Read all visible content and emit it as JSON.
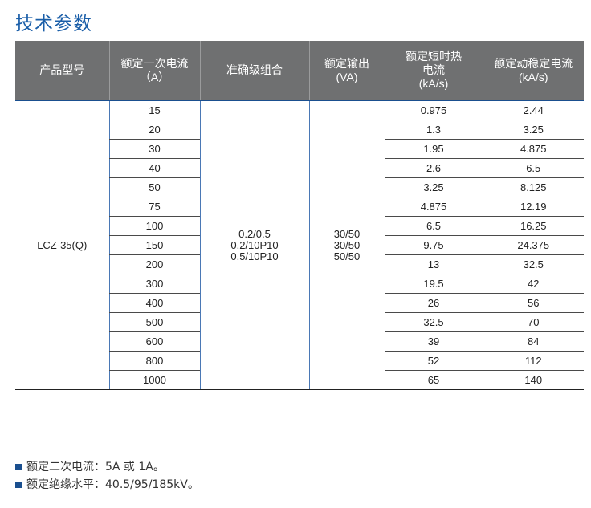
{
  "title": "技术参数",
  "table": {
    "headers": [
      "产品型号",
      "额定一次电流\n（A）",
      "准确级组合",
      "额定输出\n(VA)",
      "额定短时热\n电流\n(kA/s)",
      "额定动稳定电流\n(kA/s)"
    ],
    "model": "LCZ-35(Q)",
    "accuracy": "0.2/0.5\n0.2/10P10\n0.5/10P10",
    "output": "30/50\n30/50\n50/50",
    "rows": [
      {
        "current": "15",
        "thermal": "0.975",
        "dynamic": "2.44"
      },
      {
        "current": "20",
        "thermal": "1.3",
        "dynamic": "3.25"
      },
      {
        "current": "30",
        "thermal": "1.95",
        "dynamic": "4.875"
      },
      {
        "current": "40",
        "thermal": "2.6",
        "dynamic": "6.5"
      },
      {
        "current": "50",
        "thermal": "3.25",
        "dynamic": "8.125"
      },
      {
        "current": "75",
        "thermal": "4.875",
        "dynamic": "12.19"
      },
      {
        "current": "100",
        "thermal": "6.5",
        "dynamic": "16.25"
      },
      {
        "current": "150",
        "thermal": "9.75",
        "dynamic": "24.375"
      },
      {
        "current": "200",
        "thermal": "13",
        "dynamic": "32.5"
      },
      {
        "current": "300",
        "thermal": "19.5",
        "dynamic": "42"
      },
      {
        "current": "400",
        "thermal": "26",
        "dynamic": "56"
      },
      {
        "current": "500",
        "thermal": "32.5",
        "dynamic": "70"
      },
      {
        "current": "600",
        "thermal": "39",
        "dynamic": "84"
      },
      {
        "current": "800",
        "thermal": "52",
        "dynamic": "112"
      },
      {
        "current": "1000",
        "thermal": "65",
        "dynamic": "140"
      }
    ]
  },
  "notes": [
    "额定二次电流：5A 或 1A。",
    "额定绝缘水平：40.5/95/185kV。"
  ],
  "colors": {
    "title": "#1a5ea8",
    "header_bg": "#6f7071",
    "accent": "#1a4f8f"
  }
}
